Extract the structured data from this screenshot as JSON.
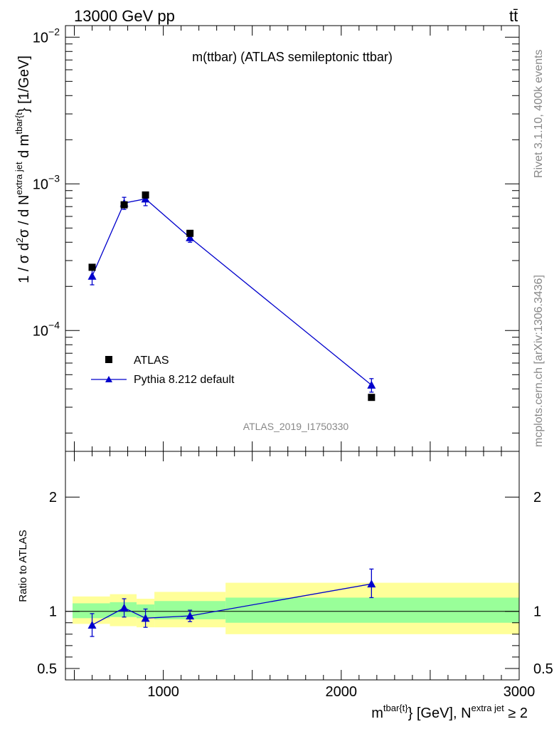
{
  "header": {
    "energy": "13000 GeV pp",
    "process": "tt̄"
  },
  "side": {
    "rivet": "Rivet 3.1.10,  400k events",
    "mcplots": "mcplots.cern.ch [arXiv:1306.3436]"
  },
  "colors": {
    "mc": "#0000cc",
    "band_inner": "#99ff99",
    "band_outer": "#ffff99",
    "data": "#000000"
  },
  "chart_data": [
    {
      "type": "scatter",
      "title": "m(ttbar) (ATLAS semileptonic ttbar)",
      "watermark": "ATLAS_2019_I1750330",
      "ylabel": "1 / σ d²σ / d N^{extra jet} d m^{tbar{t}} [1/GeV]",
      "yscale": "log",
      "ylim": [
        1.5e-05,
        0.012
      ],
      "xlim": [
        450,
        3000
      ],
      "ytick_labels": [
        {
          "mantissa": "10",
          "exp": "−4",
          "value": 0.0001
        },
        {
          "mantissa": "10",
          "exp": "−3",
          "value": 0.001
        },
        {
          "mantissa": "10",
          "exp": "−2",
          "value": 0.01
        }
      ],
      "legend": {
        "position": "bottom-left",
        "entries": [
          "ATLAS",
          "Pythia 8.212 default"
        ]
      },
      "series": [
        {
          "name": "ATLAS",
          "marker": "square",
          "x": [
            600,
            780,
            900,
            1150,
            2170
          ],
          "y": [
            0.00027,
            0.00072,
            0.00084,
            0.00046,
            3.5e-05
          ]
        },
        {
          "name": "Pythia 8.212 default",
          "marker": "triangle",
          "x": [
            600,
            780,
            900,
            1150,
            2170
          ],
          "y": [
            0.000235,
            0.00074,
            0.00079,
            0.00043,
            4.25e-05
          ],
          "yerr_low": [
            3e-05,
            7e-05,
            8e-05,
            3e-05,
            4.5e-06
          ],
          "yerr_high": [
            3e-05,
            7e-05,
            8e-05,
            3e-05,
            4.5e-06
          ]
        }
      ]
    },
    {
      "type": "line",
      "ylabel": "Ratio to ATLAS",
      "xlabel_main": "m",
      "xlabel_sup1": "tbar{t}",
      "xlabel_mid": "} [GeV], N",
      "xlabel_sup2": "extra jet",
      "xlabel_tail": " ≥ 2",
      "xlim": [
        450,
        3000
      ],
      "ylim": [
        0.4,
        2.4
      ],
      "xtick_labels": [
        "1000",
        "2000",
        "3000"
      ],
      "xticks": [
        1000,
        2000,
        3000
      ],
      "ytick_labels": [
        "0.5",
        "1",
        "2"
      ],
      "yticks": [
        0.5,
        1,
        2
      ],
      "bands": [
        {
          "x_low": 490,
          "x_high": 700,
          "inner": [
            0.94,
            1.07
          ],
          "outer": [
            0.89,
            1.13
          ]
        },
        {
          "x_low": 700,
          "x_high": 850,
          "inner": [
            0.95,
            1.08
          ],
          "outer": [
            0.87,
            1.15
          ]
        },
        {
          "x_low": 850,
          "x_high": 950,
          "inner": [
            0.94,
            1.06
          ],
          "outer": [
            0.86,
            1.11
          ]
        },
        {
          "x_low": 950,
          "x_high": 1350,
          "inner": [
            0.93,
            1.09
          ],
          "outer": [
            0.86,
            1.17
          ]
        },
        {
          "x_low": 1350,
          "x_high": 3000,
          "inner": [
            0.9,
            1.12
          ],
          "outer": [
            0.8,
            1.25
          ]
        }
      ],
      "series": [
        {
          "name": "Pythia 8.212 default",
          "x": [
            600,
            780,
            900,
            1150,
            2170
          ],
          "y": [
            0.88,
            1.03,
            0.94,
            0.96,
            1.24
          ],
          "yerr_low": [
            0.1,
            0.08,
            0.08,
            0.05,
            0.12
          ],
          "yerr_high": [
            0.1,
            0.08,
            0.08,
            0.05,
            0.13
          ]
        }
      ]
    }
  ]
}
